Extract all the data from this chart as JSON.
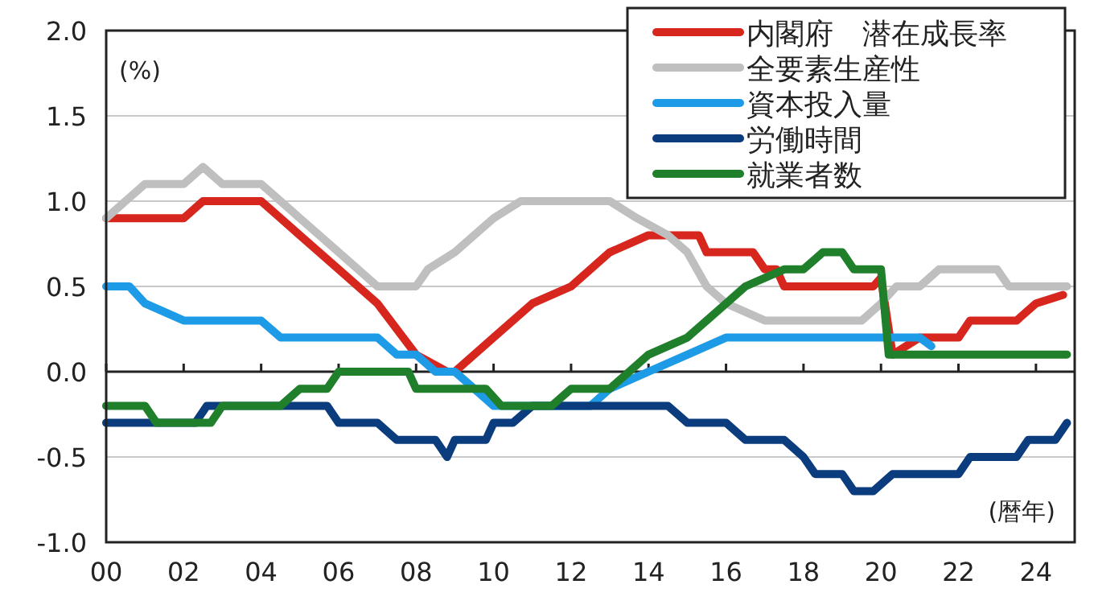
{
  "chart_data": {
    "type": "line",
    "annotations": [
      "(%)",
      "(暦年)"
    ],
    "xlim": [
      2000,
      2025
    ],
    "ylim": [
      -1.0,
      2.0
    ],
    "xticks": [
      {
        "value": 2000,
        "label": "00"
      },
      {
        "value": 2002,
        "label": "02"
      },
      {
        "value": 2004,
        "label": "04"
      },
      {
        "value": 2006,
        "label": "06"
      },
      {
        "value": 2008,
        "label": "08"
      },
      {
        "value": 2010,
        "label": "10"
      },
      {
        "value": 2012,
        "label": "12"
      },
      {
        "value": 2014,
        "label": "14"
      },
      {
        "value": 2016,
        "label": "16"
      },
      {
        "value": 2018,
        "label": "18"
      },
      {
        "value": 2020,
        "label": "20"
      },
      {
        "value": 2022,
        "label": "22"
      },
      {
        "value": 2024,
        "label": "24"
      }
    ],
    "yticks": [
      {
        "value": -1.0,
        "label": "-1.0"
      },
      {
        "value": -0.5,
        "label": "-0.5"
      },
      {
        "value": 0.0,
        "label": "0.0"
      },
      {
        "value": 0.5,
        "label": "0.5"
      },
      {
        "value": 1.0,
        "label": "1.0"
      },
      {
        "value": 1.5,
        "label": "1.5"
      },
      {
        "value": 2.0,
        "label": "2.0"
      }
    ],
    "grid": "y",
    "legend": "top right",
    "series": [
      {
        "name": "内閣府　潜在成長率",
        "color": "#d7261e",
        "x": [
          2000,
          2002,
          2002.5,
          2004,
          2004.5,
          2005,
          2006,
          2007,
          2008,
          2008.8,
          2009,
          2010,
          2011,
          2012,
          2013,
          2014,
          2015.3,
          2015.5,
          2016.7,
          2017,
          2017.3,
          2017.5,
          2019.8,
          2020,
          2020.3,
          2021,
          2022,
          2022.3,
          2023.5,
          2024,
          2024.7
        ],
        "values": [
          0.9,
          0.9,
          1.0,
          1.0,
          0.9,
          0.8,
          0.6,
          0.4,
          0.1,
          0.0,
          0.0,
          0.2,
          0.4,
          0.5,
          0.7,
          0.8,
          0.8,
          0.7,
          0.7,
          0.6,
          0.6,
          0.5,
          0.5,
          0.55,
          0.1,
          0.2,
          0.2,
          0.3,
          0.3,
          0.4,
          0.45
        ]
      },
      {
        "name": "全要素生産性",
        "color": "#bfbfbf",
        "x": [
          2000,
          2000.5,
          2001,
          2002,
          2002.5,
          2003,
          2004,
          2004.5,
          2005,
          2006,
          2007,
          2008,
          2008.3,
          2009,
          2010,
          2010.7,
          2013,
          2013.7,
          2014.5,
          2015,
          2015.5,
          2016,
          2017,
          2019.5,
          2020,
          2020.4,
          2021,
          2021.5,
          2023,
          2023.3,
          2024.8
        ],
        "values": [
          0.9,
          1.0,
          1.1,
          1.1,
          1.2,
          1.1,
          1.1,
          1.0,
          0.9,
          0.7,
          0.5,
          0.5,
          0.6,
          0.7,
          0.9,
          1.0,
          1.0,
          0.9,
          0.8,
          0.7,
          0.5,
          0.4,
          0.3,
          0.3,
          0.4,
          0.5,
          0.5,
          0.6,
          0.6,
          0.5,
          0.5
        ]
      },
      {
        "name": "資本投入量",
        "color": "#1e9be6",
        "x": [
          2000,
          2000.6,
          2001,
          2002,
          2004,
          2004.5,
          2007,
          2007.5,
          2008,
          2008.5,
          2009,
          2009.5,
          2010,
          2012.5,
          2013,
          2014,
          2015,
          2016,
          2021,
          2021.3
        ],
        "values": [
          0.5,
          0.5,
          0.4,
          0.3,
          0.3,
          0.2,
          0.2,
          0.1,
          0.1,
          0.0,
          0.0,
          -0.1,
          -0.2,
          -0.2,
          -0.1,
          0.0,
          0.1,
          0.2,
          0.2,
          0.15
        ]
      },
      {
        "name": "労働時間",
        "color": "#0b3c7d",
        "x": [
          2000,
          2002.3,
          2002.6,
          2005.7,
          2006,
          2007,
          2007.5,
          2008.5,
          2008.8,
          2009,
          2009.8,
          2010,
          2010.5,
          2011,
          2014.5,
          2015,
          2016,
          2016.5,
          2017.5,
          2018,
          2018.3,
          2019,
          2019.3,
          2019.8,
          2020.3,
          2022,
          2022.3,
          2023.5,
          2023.8,
          2024.5,
          2024.8
        ],
        "values": [
          -0.3,
          -0.3,
          -0.2,
          -0.2,
          -0.3,
          -0.3,
          -0.4,
          -0.4,
          -0.5,
          -0.4,
          -0.4,
          -0.3,
          -0.3,
          -0.2,
          -0.2,
          -0.3,
          -0.3,
          -0.4,
          -0.4,
          -0.5,
          -0.6,
          -0.6,
          -0.7,
          -0.7,
          -0.6,
          -0.6,
          -0.5,
          -0.5,
          -0.4,
          -0.4,
          -0.3
        ]
      },
      {
        "name": "就業者数",
        "color": "#1f7f2a",
        "x": [
          2000,
          2001,
          2001.3,
          2002.7,
          2003,
          2004.5,
          2005,
          2005.7,
          2006,
          2007.8,
          2008,
          2009.8,
          2010.2,
          2011.5,
          2012,
          2013,
          2013.5,
          2014,
          2015,
          2015.5,
          2016,
          2016.5,
          2017.5,
          2018,
          2018.5,
          2019,
          2019.3,
          2020,
          2020.2,
          2024.8
        ],
        "values": [
          -0.2,
          -0.2,
          -0.3,
          -0.3,
          -0.2,
          -0.2,
          -0.1,
          -0.1,
          0.0,
          0.0,
          -0.1,
          -0.1,
          -0.2,
          -0.2,
          -0.1,
          -0.1,
          0.0,
          0.1,
          0.2,
          0.3,
          0.4,
          0.5,
          0.6,
          0.6,
          0.7,
          0.7,
          0.6,
          0.6,
          0.1,
          0.1
        ]
      }
    ]
  }
}
